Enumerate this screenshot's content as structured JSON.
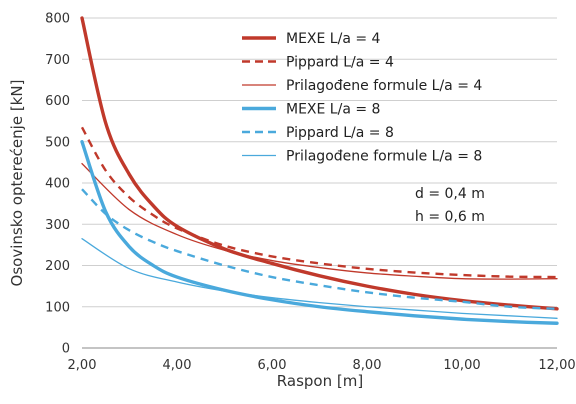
{
  "chart_data": {
    "type": "line",
    "xlabel": "Raspon [m]",
    "ylabel": "Osovinsko opterećenje [kN]",
    "xlim": [
      2,
      12
    ],
    "ylim": [
      0,
      800
    ],
    "xticks": [
      2,
      4,
      6,
      8,
      10,
      12
    ],
    "xtick_labels": [
      "2,00",
      "4,00",
      "6,00",
      "8,00",
      "10,00",
      "12,00"
    ],
    "yticks": [
      0,
      100,
      200,
      300,
      400,
      500,
      600,
      700,
      800
    ],
    "ytick_labels": [
      "0",
      "100",
      "200",
      "300",
      "400",
      "500",
      "600",
      "700",
      "800"
    ],
    "grid": "horizontal",
    "legend_position": "top-right",
    "annotations": [
      "d = 0,4 m",
      "h = 0,6 m"
    ],
    "colors": {
      "red": "#c0392b",
      "blue": "#4aa9dc"
    },
    "series": [
      {
        "name": "MEXE L/a = 4",
        "color": "#c0392b",
        "style": "solid-thick",
        "x": [
          2,
          2.5,
          3,
          3.5,
          4,
          5,
          6,
          7,
          8,
          9,
          10,
          11,
          12
        ],
        "y": [
          800,
          545,
          420,
          345,
          295,
          240,
          205,
          175,
          150,
          130,
          115,
          104,
          95
        ]
      },
      {
        "name": "Pippard L/a = 4",
        "color": "#c0392b",
        "style": "dashed",
        "x": [
          2,
          2.5,
          3,
          3.5,
          4,
          5,
          6,
          7,
          8,
          9,
          10,
          11,
          12
        ],
        "y": [
          535,
          430,
          365,
          322,
          290,
          248,
          222,
          205,
          192,
          183,
          177,
          173,
          172
        ]
      },
      {
        "name": "Prilagođene formule L/a = 4",
        "color": "#c0392b",
        "style": "solid-thin",
        "x": [
          2,
          3,
          4,
          5,
          6,
          7,
          8,
          9,
          10,
          11,
          12
        ],
        "y": [
          447,
          335,
          275,
          237,
          212,
          195,
          182,
          174,
          168,
          167,
          168
        ]
      },
      {
        "name": "MEXE L/a = 8",
        "color": "#4aa9dc",
        "style": "solid-thick",
        "x": [
          2,
          2.5,
          3,
          3.5,
          4,
          5,
          6,
          7,
          8,
          9,
          10,
          11,
          12
        ],
        "y": [
          500,
          330,
          245,
          200,
          172,
          140,
          117,
          100,
          88,
          78,
          70,
          64,
          60
        ]
      },
      {
        "name": "Pippard L/a = 8",
        "color": "#4aa9dc",
        "style": "dashed",
        "x": [
          2,
          2.5,
          3,
          3.5,
          4,
          5,
          6,
          7,
          8,
          9,
          10,
          11,
          12
        ],
        "y": [
          385,
          325,
          285,
          257,
          235,
          200,
          172,
          152,
          135,
          122,
          112,
          100,
          95
        ]
      },
      {
        "name": "Prilagođene formule L/a = 8",
        "color": "#4aa9dc",
        "style": "solid-thin",
        "x": [
          2,
          3,
          4,
          5,
          6,
          7,
          8,
          9,
          10,
          11,
          12
        ],
        "y": [
          265,
          192,
          160,
          138,
          122,
          110,
          100,
          92,
          84,
          78,
          72
        ]
      }
    ]
  }
}
